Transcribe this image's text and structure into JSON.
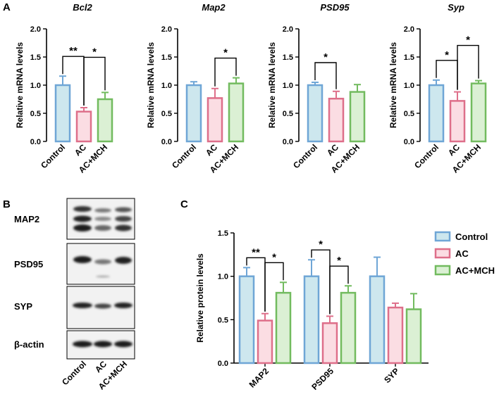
{
  "panels": {
    "a": "A",
    "b": "B",
    "c": "C"
  },
  "colors": {
    "Control": {
      "stroke": "#6fa6d6",
      "fill": "#cde7ee"
    },
    "AC": {
      "stroke": "#de6f8a",
      "fill": "#fbdde3"
    },
    "AC+MCH": {
      "stroke": "#72bb5f",
      "fill": "#dbf0d4"
    }
  },
  "chart_data": [
    {
      "type": "bar",
      "title": "Bcl2",
      "ylabel": "Relative mRNA levels",
      "categories": [
        "Control",
        "AC",
        "AC+MCH"
      ],
      "values": [
        1.0,
        0.53,
        0.75
      ],
      "errors": [
        0.16,
        0.07,
        0.12
      ],
      "ylim": [
        0,
        2.0
      ],
      "yticks": [
        "0.0",
        "0.5",
        "1.0",
        "1.5",
        "2.0"
      ],
      "significance": [
        {
          "from": 0,
          "to": 1,
          "label": "**"
        },
        {
          "from": 1,
          "to": 2,
          "label": "*"
        }
      ]
    },
    {
      "type": "bar",
      "title": "Map2",
      "ylabel": "Relative mRNA levels",
      "categories": [
        "Control",
        "AC",
        "AC+MCH"
      ],
      "values": [
        1.0,
        0.77,
        1.03
      ],
      "errors": [
        0.06,
        0.17,
        0.1
      ],
      "ylim": [
        0,
        2.0
      ],
      "yticks": [
        "0.0",
        "0.5",
        "1.0",
        "1.5",
        "2.0"
      ],
      "significance": [
        {
          "from": 1,
          "to": 2,
          "label": "*"
        }
      ]
    },
    {
      "type": "bar",
      "title": "PSD95",
      "ylabel": "Relative mRNA levels",
      "categories": [
        "Control",
        "AC",
        "AC+MCH"
      ],
      "values": [
        1.0,
        0.76,
        0.88
      ],
      "errors": [
        0.05,
        0.13,
        0.13
      ],
      "ylim": [
        0,
        2.0
      ],
      "yticks": [
        "0.0",
        "0.5",
        "1.0",
        "1.5",
        "2.0"
      ],
      "significance": [
        {
          "from": 0,
          "to": 1,
          "label": "*"
        }
      ]
    },
    {
      "type": "bar",
      "title": "Syp",
      "ylabel": "Relative mRNA levels",
      "categories": [
        "Control",
        "AC",
        "AC+MCH"
      ],
      "values": [
        1.0,
        0.72,
        1.03
      ],
      "errors": [
        0.09,
        0.16,
        0.05
      ],
      "ylim": [
        0,
        2.0
      ],
      "yticks": [
        "0.0",
        "0.5",
        "1.0",
        "1.5",
        "2.0"
      ],
      "significance": [
        {
          "from": 0,
          "to": 1,
          "label": "*"
        },
        {
          "from": 1,
          "to": 2,
          "label": "*"
        }
      ]
    },
    {
      "type": "bar",
      "title": "",
      "ylabel": "Relative protein levels",
      "categories": [
        "MAP2",
        "PSD95",
        "SYP"
      ],
      "series": [
        {
          "name": "Control",
          "values": [
            1.0,
            1.0,
            1.0
          ],
          "errors": [
            0.1,
            0.19,
            0.22
          ]
        },
        {
          "name": "AC",
          "values": [
            0.49,
            0.46,
            0.64
          ],
          "errors": [
            0.08,
            0.08,
            0.05
          ]
        },
        {
          "name": "AC+MCH",
          "values": [
            0.81,
            0.81,
            0.62
          ],
          "errors": [
            0.12,
            0.08,
            0.18
          ]
        }
      ],
      "ylim": [
        0,
        1.5
      ],
      "yticks": [
        "0.0",
        "0.5",
        "1.0",
        "1.5"
      ],
      "legend": "right",
      "significance": [
        {
          "category": 0,
          "from": 0,
          "to": 1,
          "label": "**"
        },
        {
          "category": 0,
          "from": 1,
          "to": 2,
          "label": "*"
        },
        {
          "category": 1,
          "from": 0,
          "to": 1,
          "label": "*"
        },
        {
          "category": 1,
          "from": 1,
          "to": 2,
          "label": "*"
        }
      ]
    }
  ],
  "western_blot": {
    "bands": [
      "MAP2",
      "PSD95",
      "SYP",
      "β-actin"
    ],
    "lanes": [
      "Control",
      "AC",
      "AC+MCH"
    ]
  }
}
